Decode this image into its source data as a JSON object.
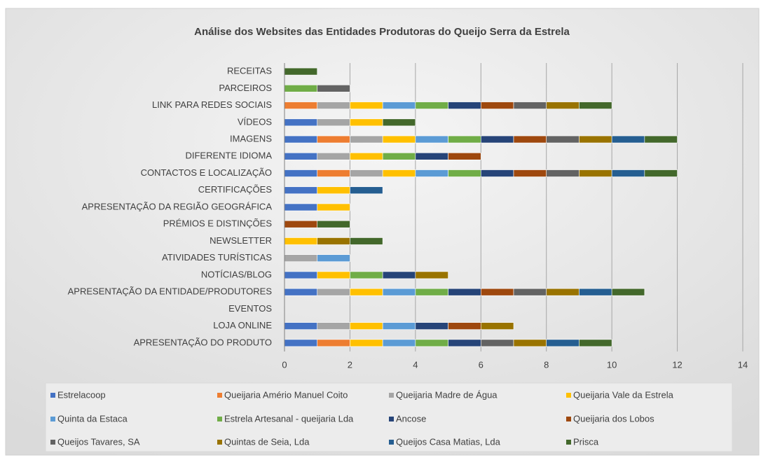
{
  "chart_data": {
    "type": "bar",
    "orientation": "horizontal",
    "stacked": true,
    "title": "Análise dos Websites das Entidades Produtoras do Queijo Serra da Estrela",
    "categories": [
      "APRESENTAÇÃO DO PRODUTO",
      "LOJA ONLINE",
      "EVENTOS",
      "APRESENTAÇÃO DA ENTIDADE/PRODUTORES",
      "NOTÍCIAS/BLOG",
      "ATIVIDADES TURÍSTICAS",
      "NEWSLETTER",
      "PRÉMIOS E DISTINÇÕES",
      "APRESENTAÇÃO DA REGIÃO GEOGRÁFICA",
      "CERTIFICAÇÕES",
      "CONTACTOS E LOCALIZAÇÃO",
      "DIFERENTE IDIOMA",
      "IMAGENS",
      "VÍDEOS",
      "LINK PARA REDES SOCIAIS",
      "PARCEIROS",
      "RECEITAS"
    ],
    "series": [
      {
        "name": "Estrelacoop",
        "color": "#4472c4",
        "values": [
          1,
          1,
          0,
          1,
          1,
          0,
          0,
          0,
          1,
          1,
          1,
          1,
          1,
          1,
          0,
          0,
          0
        ]
      },
      {
        "name": "Queijaria Amério Manuel Coito",
        "color": "#ed7d31",
        "values": [
          1,
          0,
          0,
          0,
          0,
          0,
          0,
          0,
          0,
          0,
          1,
          0,
          1,
          0,
          1,
          0,
          0
        ]
      },
      {
        "name": "Queijaria Madre de Água",
        "color": "#a5a5a5",
        "values": [
          0,
          1,
          0,
          1,
          0,
          1,
          0,
          0,
          0,
          0,
          1,
          1,
          1,
          1,
          1,
          0,
          0
        ]
      },
      {
        "name": "Queijaria Vale da Estrela",
        "color": "#ffc000",
        "values": [
          1,
          1,
          0,
          1,
          1,
          0,
          1,
          0,
          1,
          1,
          1,
          1,
          1,
          1,
          1,
          0,
          0
        ]
      },
      {
        "name": "Quinta da Estaca",
        "color": "#5b9bd5",
        "values": [
          1,
          1,
          0,
          1,
          0,
          1,
          0,
          0,
          0,
          0,
          1,
          0,
          1,
          0,
          1,
          0,
          0
        ]
      },
      {
        "name": "Estrela Artesanal - queijaria Lda",
        "color": "#70ad47",
        "values": [
          1,
          0,
          0,
          1,
          1,
          0,
          0,
          0,
          0,
          0,
          1,
          1,
          1,
          0,
          1,
          1,
          0
        ]
      },
      {
        "name": "Ancose",
        "color": "#264478",
        "values": [
          1,
          1,
          0,
          1,
          1,
          0,
          0,
          0,
          0,
          0,
          1,
          1,
          1,
          0,
          1,
          0,
          0
        ]
      },
      {
        "name": "Queijaria dos Lobos",
        "color": "#9e480e",
        "values": [
          0,
          1,
          0,
          1,
          0,
          0,
          0,
          1,
          0,
          0,
          1,
          1,
          1,
          0,
          1,
          0,
          0
        ]
      },
      {
        "name": "Queijos Tavares, SA",
        "color": "#636363",
        "values": [
          1,
          0,
          0,
          1,
          0,
          0,
          0,
          0,
          0,
          0,
          1,
          0,
          1,
          0,
          1,
          1,
          0
        ]
      },
      {
        "name": "Quintas de Seia, Lda",
        "color": "#997300",
        "values": [
          1,
          1,
          0,
          1,
          1,
          0,
          1,
          0,
          0,
          0,
          1,
          0,
          1,
          0,
          1,
          0,
          0
        ]
      },
      {
        "name": "Queijos Casa Matias, Lda",
        "color": "#255e91",
        "values": [
          1,
          0,
          0,
          1,
          0,
          0,
          0,
          0,
          0,
          1,
          1,
          0,
          1,
          0,
          0,
          0,
          0
        ]
      },
      {
        "name": "Prisca",
        "color": "#43682b",
        "values": [
          1,
          0,
          0,
          1,
          0,
          0,
          1,
          1,
          0,
          0,
          1,
          0,
          1,
          1,
          1,
          0,
          1
        ]
      }
    ],
    "xlim": [
      0,
      14
    ],
    "xticks": [
      0,
      2,
      4,
      6,
      8,
      10,
      12,
      14
    ],
    "grid": true,
    "legend": "bottom"
  }
}
